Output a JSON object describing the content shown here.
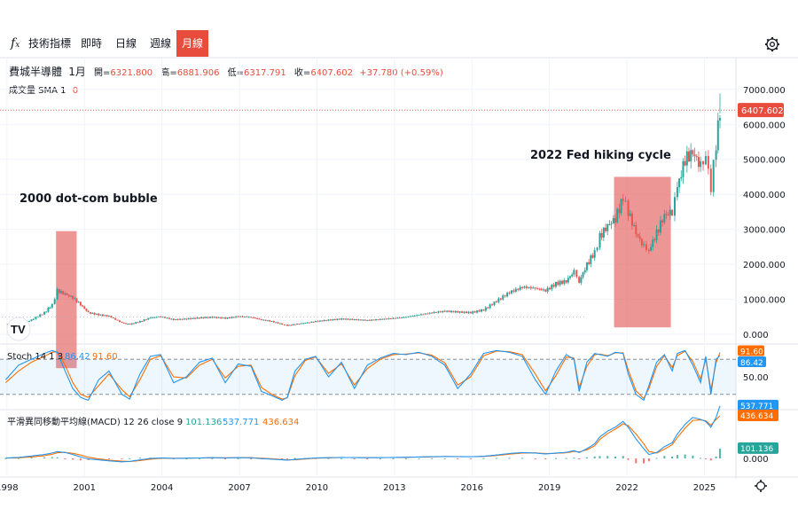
{
  "toolbar": {
    "indicator_label": "技術指標",
    "tabs": [
      {
        "label": "即時",
        "active": false
      },
      {
        "label": "日線",
        "active": false
      },
      {
        "label": "週線",
        "active": false
      },
      {
        "label": "月線",
        "active": true
      }
    ]
  },
  "header": {
    "symbol": "費城半導體",
    "interval": "1月",
    "open_label": "開=",
    "open": "6321.800",
    "high_label": "高=",
    "high": "6881.906",
    "low_label": "低=",
    "low": "6317.791",
    "close_label": "收=",
    "close": "6407.602",
    "change": "+37.780 (+0.59%)"
  },
  "volume": {
    "label": "成交量 SMA 1",
    "value": "0"
  },
  "stoch": {
    "label": "Stoch 14 1 3",
    "k": "86.42",
    "d": "91.60"
  },
  "macd": {
    "label": "平滑異同移動平均線(MACD) 12 26 close 9",
    "hist": "101.136",
    "macd": "537.771",
    "signal": "436.634"
  },
  "annotations": {
    "dotcom": "2000 dot-com bubble",
    "fed": "2022 Fed hiking cycle"
  },
  "colors": {
    "up": "#26a69a",
    "down": "#ef5350",
    "k_line": "#2196f3",
    "d_line": "#ff6d00",
    "highlight": "#e57373",
    "accent": "#e74c3c"
  },
  "chart_data": {
    "type": "line",
    "title": "費城半導體",
    "x_ticks": [
      "1998",
      "2001",
      "2004",
      "2007",
      "2010",
      "2013",
      "2016",
      "2019",
      "2022",
      "2025"
    ],
    "price_axis": {
      "ticks": [
        "0.000",
        "1000.000",
        "2000.000",
        "3000.000",
        "4000.000",
        "5000.000",
        "6000.000",
        "7000.000"
      ],
      "ylim": [
        -200,
        7400
      ],
      "last": "6407.602"
    },
    "stoch_axis": {
      "ticks": [
        "0.00",
        "50.00"
      ],
      "ylim": [
        0,
        100
      ],
      "bands": [
        20,
        80
      ]
    },
    "macd_axis": {
      "ticks": [
        "0.000"
      ],
      "last_macd": "537.771",
      "last_signal": "436.634",
      "last_hist": "101.136"
    },
    "price_series": {
      "name": "費城半導體",
      "x": [
        1998.0,
        1998.5,
        1999.0,
        1999.5,
        1999.8,
        2000.0,
        2000.3,
        2000.6,
        2000.9,
        2001.2,
        2001.6,
        2002.0,
        2002.5,
        2002.8,
        2003.2,
        2003.6,
        2004.0,
        2004.5,
        2005.0,
        2005.5,
        2006.0,
        2006.5,
        2007.0,
        2007.5,
        2007.9,
        2008.3,
        2008.7,
        2008.9,
        2009.2,
        2009.6,
        2010.0,
        2010.5,
        2011.0,
        2011.5,
        2012.0,
        2012.5,
        2013.0,
        2013.5,
        2014.0,
        2014.5,
        2015.0,
        2015.5,
        2016.0,
        2016.5,
        2017.0,
        2017.5,
        2018.0,
        2018.5,
        2018.9,
        2019.3,
        2019.7,
        2020.0,
        2020.2,
        2020.5,
        2020.8,
        2021.0,
        2021.3,
        2021.6,
        2021.9,
        2022.1,
        2022.4,
        2022.7,
        2022.9,
        2023.2,
        2023.5,
        2023.8,
        2024.0,
        2024.3,
        2024.6,
        2024.9,
        2025.1,
        2025.3,
        2025.5,
        2025.65
      ],
      "values": [
        300,
        260,
        420,
        620,
        850,
        1250,
        1150,
        1050,
        850,
        620,
        560,
        520,
        330,
        290,
        370,
        480,
        510,
        420,
        440,
        470,
        490,
        460,
        510,
        490,
        420,
        370,
        290,
        250,
        290,
        330,
        370,
        410,
        440,
        420,
        400,
        430,
        460,
        500,
        560,
        620,
        660,
        640,
        620,
        700,
        950,
        1200,
        1350,
        1320,
        1250,
        1450,
        1520,
        1800,
        1500,
        2000,
        2350,
        2800,
        3100,
        3300,
        3900,
        3500,
        2900,
        2500,
        2400,
        2900,
        3400,
        3500,
        4200,
        5000,
        5200,
        4800,
        5100,
        4200,
        5400,
        6407.6
      ],
      "high": [
        380,
        320,
        500,
        700,
        900,
        1400,
        1300,
        1200,
        1000,
        750,
        650,
        560,
        390,
        340,
        420,
        520,
        570,
        470,
        480,
        500,
        520,
        500,
        550,
        530,
        470,
        410,
        340,
        290,
        330,
        370,
        410,
        440,
        470,
        460,
        440,
        460,
        490,
        540,
        600,
        660,
        700,
        680,
        680,
        750,
        1000,
        1300,
        1450,
        1400,
        1350,
        1550,
        1650,
        1900,
        1750,
        2100,
        2500,
        2950,
        3250,
        3500,
        4100,
        3950,
        3300,
        2900,
        2600,
        3100,
        3550,
        3700,
        4500,
        5500,
        5900,
        5300,
        5500,
        5000,
        5800,
        6881.9
      ],
      "low": [
        240,
        210,
        360,
        560,
        780,
        1100,
        1000,
        900,
        700,
        540,
        480,
        380,
        260,
        230,
        320,
        430,
        430,
        380,
        410,
        420,
        440,
        410,
        470,
        420,
        330,
        300,
        220,
        200,
        240,
        290,
        330,
        380,
        400,
        360,
        360,
        390,
        430,
        470,
        520,
        580,
        600,
        560,
        560,
        650,
        900,
        1150,
        1250,
        1200,
        1100,
        1350,
        1450,
        1500,
        1300,
        1850,
        2200,
        2700,
        2950,
        3200,
        3700,
        3300,
        2600,
        2300,
        2100,
        2700,
        3200,
        3300,
        4000,
        4800,
        4400,
        4300,
        4600,
        3400,
        4800,
        6317.8
      ]
    },
    "stoch_series": [
      {
        "name": "%K",
        "values": [
          45,
          70,
          80,
          90,
          95,
          92,
          60,
          30,
          15,
          10,
          45,
          60,
          20,
          12,
          55,
          85,
          88,
          40,
          50,
          75,
          82,
          40,
          72,
          68,
          25,
          18,
          10,
          15,
          60,
          80,
          85,
          50,
          75,
          30,
          70,
          82,
          90,
          88,
          92,
          85,
          70,
          30,
          55,
          90,
          95,
          92,
          85,
          45,
          20,
          60,
          88,
          80,
          25,
          75,
          90,
          88,
          85,
          92,
          90,
          55,
          20,
          10,
          35,
          75,
          88,
          60,
          90,
          95,
          70,
          40,
          85,
          20,
          80,
          86.42
        ]
      },
      {
        "name": "%D",
        "values": [
          40,
          60,
          75,
          85,
          92,
          93,
          70,
          40,
          20,
          15,
          35,
          55,
          28,
          16,
          45,
          80,
          86,
          50,
          48,
          70,
          80,
          48,
          68,
          70,
          32,
          20,
          12,
          14,
          52,
          78,
          84,
          56,
          72,
          36,
          64,
          80,
          88,
          89,
          91,
          87,
          74,
          36,
          50,
          86,
          94,
          93,
          88,
          55,
          26,
          52,
          84,
          82,
          32,
          68,
          88,
          89,
          86,
          91,
          91,
          62,
          26,
          13,
          30,
          68,
          86,
          66,
          86,
          94,
          76,
          46,
          80,
          28,
          74,
          91.6
        ]
      }
    ],
    "macd_series": [
      {
        "name": "MACD",
        "values": [
          5,
          10,
          25,
          40,
          55,
          70,
          60,
          40,
          15,
          -5,
          -15,
          -25,
          -35,
          -30,
          -15,
          0,
          5,
          0,
          2,
          5,
          8,
          5,
          8,
          6,
          -2,
          -8,
          -15,
          -18,
          -10,
          -2,
          5,
          8,
          10,
          8,
          7,
          8,
          10,
          12,
          15,
          18,
          20,
          18,
          17,
          22,
          35,
          50,
          60,
          55,
          45,
          55,
          62,
          80,
          60,
          100,
          150,
          220,
          280,
          320,
          380,
          320,
          200,
          100,
          40,
          60,
          120,
          160,
          250,
          350,
          420,
          400,
          380,
          320,
          420,
          537.771
        ]
      },
      {
        "name": "Signal",
        "values": [
          3,
          6,
          15,
          28,
          42,
          58,
          62,
          52,
          35,
          12,
          -5,
          -18,
          -28,
          -32,
          -22,
          -8,
          2,
          2,
          2,
          4,
          6,
          6,
          7,
          7,
          2,
          -4,
          -11,
          -16,
          -14,
          -6,
          2,
          6,
          9,
          9,
          8,
          8,
          9,
          11,
          14,
          16,
          19,
          19,
          18,
          20,
          30,
          44,
          55,
          57,
          50,
          52,
          58,
          72,
          66,
          88,
          130,
          195,
          255,
          300,
          355,
          335,
          250,
          150,
          70,
          55,
          95,
          140,
          215,
          310,
          390,
          395,
          385,
          340,
          400,
          436.634
        ]
      }
    ],
    "macd_hist": [
      2,
      4,
      10,
      12,
      13,
      12,
      -2,
      -12,
      -20,
      -17,
      -10,
      -7,
      -7,
      2,
      7,
      8,
      3,
      -2,
      0,
      1,
      2,
      -1,
      1,
      -1,
      -4,
      -4,
      -4,
      -2,
      4,
      4,
      3,
      2,
      1,
      -1,
      -1,
      0,
      1,
      1,
      1,
      2,
      1,
      -1,
      -1,
      2,
      5,
      6,
      5,
      -2,
      -5,
      3,
      4,
      8,
      -6,
      12,
      20,
      25,
      25,
      20,
      25,
      -15,
      -50,
      -50,
      -30,
      5,
      25,
      20,
      35,
      40,
      30,
      5,
      -5,
      -20,
      20,
      101.136
    ]
  }
}
